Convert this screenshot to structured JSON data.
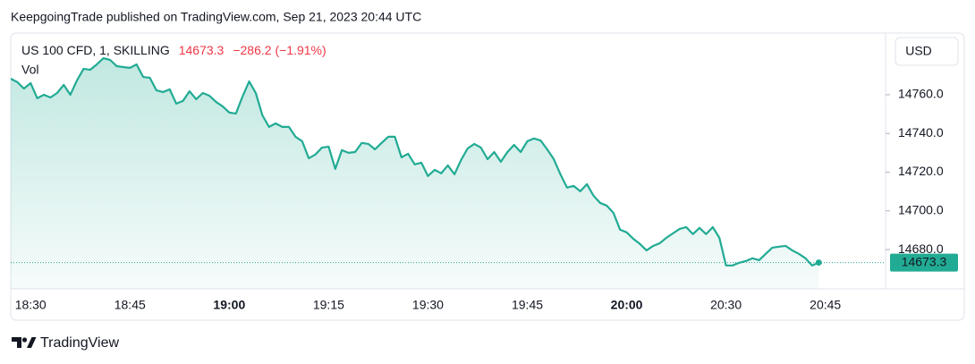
{
  "chart_data": {
    "type": "area",
    "title": "KeepgoingTrade published on TradingView.com, Sep 21, 2023 20:44 UTC",
    "symbol": "US 100 CFD, 1, SKILLING",
    "last_price": 14673.3,
    "change_label": "−286.2 (−1.91%)",
    "indicator": "Vol",
    "currency": "USD",
    "brand": "TradingView",
    "color": "#22ab94",
    "down_color": "#f23645",
    "categories": [
      null,
      null,
      null,
      "18:30",
      null,
      null,
      null,
      null,
      null,
      null,
      null,
      null,
      null,
      null,
      null,
      null,
      null,
      null,
      "18:45",
      null,
      null,
      null,
      null,
      null,
      null,
      null,
      null,
      null,
      null,
      null,
      null,
      null,
      null,
      "19:00",
      null,
      null,
      null,
      null,
      null,
      null,
      null,
      null,
      null,
      null,
      null,
      null,
      null,
      null,
      "19:15",
      null,
      null,
      null,
      null,
      null,
      null,
      null,
      null,
      null,
      null,
      null,
      null,
      null,
      null,
      "19:30",
      null,
      null,
      null,
      null,
      null,
      null,
      null,
      null,
      null,
      null,
      null,
      null,
      null,
      null,
      "19:45",
      null,
      null,
      null,
      null,
      null,
      null,
      null,
      null,
      null,
      null,
      null,
      null,
      null,
      null,
      "20:00",
      null,
      null,
      null,
      null,
      null,
      null,
      null,
      null,
      null,
      null,
      null,
      null,
      null,
      null,
      "20:30",
      null,
      null,
      null,
      null,
      null,
      null,
      null,
      null,
      null,
      null,
      null,
      null,
      null,
      null,
      "20:45"
    ],
    "values": [
      14768.3,
      14766.5,
      14763.2,
      14766.0,
      14758.2,
      14760.0,
      14758.6,
      14760.9,
      14765.1,
      14760.0,
      14767.4,
      14773.4,
      14772.9,
      14775.7,
      14778.9,
      14778.0,
      14774.8,
      14774.3,
      14773.9,
      14775.7,
      14769.2,
      14768.8,
      14762.3,
      14761.4,
      14762.8,
      14755.4,
      14756.8,
      14761.8,
      14757.7,
      14760.9,
      14759.5,
      14756.3,
      14754.0,
      14750.8,
      14750.3,
      14759.1,
      14766.9,
      14760.9,
      14749.4,
      14743.4,
      14745.2,
      14743.4,
      14743.4,
      14738.3,
      14736.0,
      14727.2,
      14729.1,
      14732.7,
      14733.2,
      14721.7,
      14731.4,
      14730.0,
      14730.4,
      14735.1,
      14734.6,
      14731.8,
      14735.1,
      14738.3,
      14738.3,
      14727.7,
      14729.5,
      14724.0,
      14724.9,
      14718.0,
      14721.2,
      14719.4,
      14723.5,
      14718.9,
      14726.3,
      14732.3,
      14734.6,
      14732.7,
      14726.7,
      14730.4,
      14725.4,
      14730.4,
      14734.1,
      14730.4,
      14736.0,
      14737.4,
      14736.4,
      14731.8,
      14726.7,
      14718.9,
      14712.0,
      14712.9,
      14710.1,
      14713.8,
      14707.8,
      14704.1,
      14702.7,
      14699.0,
      14690.3,
      14688.9,
      14685.6,
      14682.9,
      14679.6,
      14681.9,
      14683.3,
      14686.1,
      14688.4,
      14690.7,
      14691.6,
      14688.0,
      14691.2,
      14688.0,
      14691.6,
      14686.1,
      14671.8,
      14671.8,
      14673.2,
      14674.1,
      14675.5,
      14674.5,
      14677.8,
      14681.0,
      14681.5,
      14681.9,
      14679.6,
      14677.8,
      14675.5,
      14671.8,
      14673.3,
      null
    ],
    "ylim": [
      14659.7,
      14791.4
    ],
    "yticks": [
      {
        "value": 14680,
        "label": "14680.0"
      },
      {
        "value": 14700,
        "label": "14700.0"
      },
      {
        "value": 14720,
        "label": "14720.0"
      },
      {
        "value": 14740,
        "label": "14740.0"
      },
      {
        "value": 14760,
        "label": "14760.0"
      }
    ],
    "grid": false
  }
}
